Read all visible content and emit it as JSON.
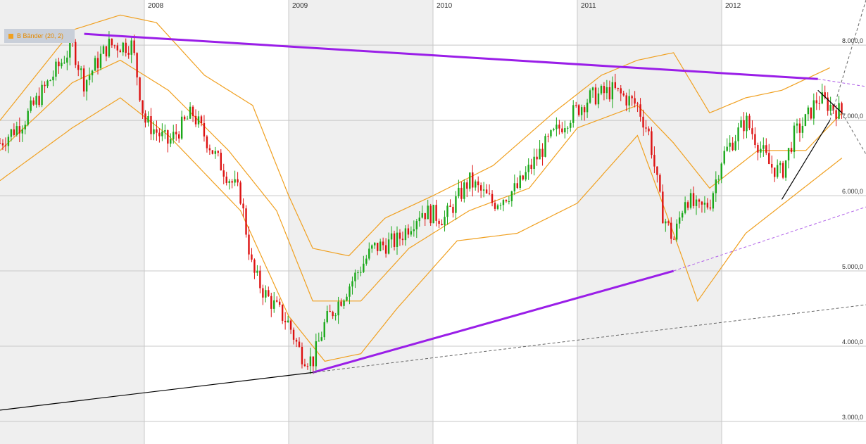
{
  "legend": {
    "label": "B Bänder (20, 2)"
  },
  "colors": {
    "up_candle": "#1aa81a",
    "down_candle": "#dd1111",
    "band": "#f0a020",
    "trend_main": "#9a1ee8",
    "trend_dashed": "#b060e8",
    "trend_black": "#000000",
    "trend_grey": "#666666",
    "shade": "#efefef",
    "grid": "#c8c8c8"
  },
  "chart_data": {
    "type": "candlestick",
    "title": "",
    "indicator": "B Bänder (20, 2)",
    "x_labels": [
      "2008",
      "2009",
      "2010",
      "2011",
      "2012"
    ],
    "x_label_dates": [
      "2008-01",
      "2009-01",
      "2010-01",
      "2011-01",
      "2012-01"
    ],
    "y_ticks": [
      3000,
      4000,
      5000,
      6000,
      7000,
      8000
    ],
    "y_tick_labels": [
      "3.000,0",
      "4.000,0",
      "5.000,0",
      "6.000,0",
      "7.000,0",
      "8.000,0"
    ],
    "x_range": [
      "2007-01",
      "2013-01"
    ],
    "ylim": [
      2700,
      8600
    ],
    "grid": true,
    "legend_position": "top-left",
    "closes": [
      {
        "date": "2007-01",
        "value": 6700
      },
      {
        "date": "2007-03",
        "value": 7000
      },
      {
        "date": "2007-05",
        "value": 7500
      },
      {
        "date": "2007-07",
        "value": 8000
      },
      {
        "date": "2007-08",
        "value": 7500
      },
      {
        "date": "2007-10",
        "value": 8000
      },
      {
        "date": "2007-12",
        "value": 8000
      },
      {
        "date": "2008-01",
        "value": 7000
      },
      {
        "date": "2008-03",
        "value": 6700
      },
      {
        "date": "2008-05",
        "value": 7100
      },
      {
        "date": "2008-07",
        "value": 6500
      },
      {
        "date": "2008-09",
        "value": 6000
      },
      {
        "date": "2008-10",
        "value": 5000
      },
      {
        "date": "2008-11",
        "value": 4700
      },
      {
        "date": "2008-12",
        "value": 4500
      },
      {
        "date": "2009-01",
        "value": 4300
      },
      {
        "date": "2009-02",
        "value": 3900
      },
      {
        "date": "2009-03",
        "value": 3800
      },
      {
        "date": "2009-04",
        "value": 4300
      },
      {
        "date": "2009-06",
        "value": 4800
      },
      {
        "date": "2009-08",
        "value": 5300
      },
      {
        "date": "2009-10",
        "value": 5400
      },
      {
        "date": "2009-12",
        "value": 5800
      },
      {
        "date": "2010-02",
        "value": 5700
      },
      {
        "date": "2010-04",
        "value": 6200
      },
      {
        "date": "2010-06",
        "value": 5900
      },
      {
        "date": "2010-08",
        "value": 6100
      },
      {
        "date": "2010-10",
        "value": 6600
      },
      {
        "date": "2010-12",
        "value": 7000
      },
      {
        "date": "2011-02",
        "value": 7300
      },
      {
        "date": "2011-04",
        "value": 7400
      },
      {
        "date": "2011-06",
        "value": 7200
      },
      {
        "date": "2011-07",
        "value": 6800
      },
      {
        "date": "2011-08",
        "value": 5800
      },
      {
        "date": "2011-09",
        "value": 5400
      },
      {
        "date": "2011-10",
        "value": 6000
      },
      {
        "date": "2011-11",
        "value": 5800
      },
      {
        "date": "2011-12",
        "value": 5900
      },
      {
        "date": "2012-01",
        "value": 6500
      },
      {
        "date": "2012-03",
        "value": 7000
      },
      {
        "date": "2012-05",
        "value": 6400
      },
      {
        "date": "2012-06",
        "value": 6300
      },
      {
        "date": "2012-07",
        "value": 6800
      },
      {
        "date": "2012-08",
        "value": 7000
      },
      {
        "date": "2012-09",
        "value": 7300
      },
      {
        "date": "2012-10",
        "value": 7200
      },
      {
        "date": "2012-11",
        "value": 7100
      }
    ],
    "bollinger": {
      "upper": [
        {
          "date": "2007-01",
          "value": 7000
        },
        {
          "date": "2007-07",
          "value": 8200
        },
        {
          "date": "2007-11",
          "value": 8400
        },
        {
          "date": "2008-02",
          "value": 8300
        },
        {
          "date": "2008-06",
          "value": 7600
        },
        {
          "date": "2008-10",
          "value": 7200
        },
        {
          "date": "2009-01",
          "value": 6000
        },
        {
          "date": "2009-03",
          "value": 5300
        },
        {
          "date": "2009-06",
          "value": 5200
        },
        {
          "date": "2009-09",
          "value": 5700
        },
        {
          "date": "2010-01",
          "value": 6000
        },
        {
          "date": "2010-06",
          "value": 6400
        },
        {
          "date": "2010-11",
          "value": 7100
        },
        {
          "date": "2011-03",
          "value": 7600
        },
        {
          "date": "2011-06",
          "value": 7800
        },
        {
          "date": "2011-09",
          "value": 7900
        },
        {
          "date": "2011-12",
          "value": 7100
        },
        {
          "date": "2012-03",
          "value": 7300
        },
        {
          "date": "2012-06",
          "value": 7400
        },
        {
          "date": "2012-10",
          "value": 7700
        }
      ],
      "middle": [
        {
          "date": "2007-01",
          "value": 6600
        },
        {
          "date": "2007-07",
          "value": 7500
        },
        {
          "date": "2007-11",
          "value": 7800
        },
        {
          "date": "2008-03",
          "value": 7400
        },
        {
          "date": "2008-08",
          "value": 6600
        },
        {
          "date": "2008-12",
          "value": 5800
        },
        {
          "date": "2009-03",
          "value": 4600
        },
        {
          "date": "2009-07",
          "value": 4600
        },
        {
          "date": "2009-11",
          "value": 5300
        },
        {
          "date": "2010-04",
          "value": 5800
        },
        {
          "date": "2010-09",
          "value": 6100
        },
        {
          "date": "2011-01",
          "value": 6900
        },
        {
          "date": "2011-06",
          "value": 7200
        },
        {
          "date": "2011-09",
          "value": 6700
        },
        {
          "date": "2011-12",
          "value": 6100
        },
        {
          "date": "2012-04",
          "value": 6600
        },
        {
          "date": "2012-08",
          "value": 6600
        },
        {
          "date": "2012-11",
          "value": 7100
        }
      ],
      "lower": [
        {
          "date": "2007-01",
          "value": 6200
        },
        {
          "date": "2007-07",
          "value": 6900
        },
        {
          "date": "2007-11",
          "value": 7300
        },
        {
          "date": "2008-03",
          "value": 6800
        },
        {
          "date": "2008-09",
          "value": 5800
        },
        {
          "date": "2009-01",
          "value": 4400
        },
        {
          "date": "2009-04",
          "value": 3800
        },
        {
          "date": "2009-07",
          "value": 3900
        },
        {
          "date": "2009-10",
          "value": 4500
        },
        {
          "date": "2010-03",
          "value": 5400
        },
        {
          "date": "2010-08",
          "value": 5500
        },
        {
          "date": "2011-01",
          "value": 5900
        },
        {
          "date": "2011-06",
          "value": 6800
        },
        {
          "date": "2011-09",
          "value": 5500
        },
        {
          "date": "2011-11",
          "value": 4600
        },
        {
          "date": "2012-03",
          "value": 5500
        },
        {
          "date": "2012-07",
          "value": 6000
        },
        {
          "date": "2012-11",
          "value": 6500
        }
      ]
    },
    "trendlines": [
      {
        "name": "resistance",
        "style": "solid",
        "from": {
          "date": "2007-08",
          "value": 8150
        },
        "to": {
          "date": "2012-09",
          "value": 7550
        }
      },
      {
        "name": "resistance-extension",
        "style": "dashed",
        "from": {
          "date": "2012-09",
          "value": 7550
        },
        "to": {
          "date": "2013-01",
          "value": 7450
        }
      },
      {
        "name": "support",
        "style": "solid",
        "from": {
          "date": "2009-03",
          "value": 3650
        },
        "to": {
          "date": "2011-09",
          "value": 5000
        }
      },
      {
        "name": "support-extension",
        "style": "dashed",
        "from": {
          "date": "2011-09",
          "value": 5000
        },
        "to": {
          "date": "2013-01",
          "value": 5850
        }
      },
      {
        "name": "long-term-support",
        "style": "solid",
        "from": {
          "date": "2007-01",
          "value": 3150
        },
        "to": {
          "date": "2009-03",
          "value": 3650
        }
      },
      {
        "name": "long-term-extension",
        "style": "dashed",
        "from": {
          "date": "2009-03",
          "value": 3650
        },
        "to": {
          "date": "2013-01",
          "value": 4550
        }
      },
      {
        "name": "short-uptrend",
        "style": "solid",
        "from": {
          "date": "2012-06",
          "value": 5950
        },
        "to": {
          "date": "2012-10",
          "value": 7000
        }
      },
      {
        "name": "short-uptrend-extension",
        "style": "dashed",
        "from": {
          "date": "2012-10",
          "value": 7000
        },
        "to": {
          "date": "2013-01",
          "value": 8600
        }
      },
      {
        "name": "short-downtrend",
        "style": "solid",
        "from": {
          "date": "2012-09",
          "value": 7400
        },
        "to": {
          "date": "2012-11",
          "value": 7100
        }
      },
      {
        "name": "short-downtrend-extension",
        "style": "dashed",
        "from": {
          "date": "2012-11",
          "value": 7100
        },
        "to": {
          "date": "2013-01",
          "value": 6550
        }
      }
    ]
  }
}
